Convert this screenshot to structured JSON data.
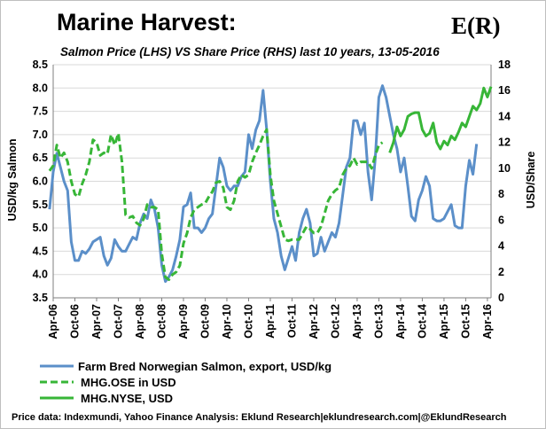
{
  "chart_data": {
    "type": "line",
    "title": "Marine Harvest:",
    "subtitle": "Salmon Price (LHS) VS Share Price (RHS) last 10 years, 13-05-2016",
    "logo": "E(R)",
    "ylabel_left": "USD/kg Salmon",
    "ylabel_right": "USD/Share",
    "ylim_left": [
      3.5,
      8.5
    ],
    "ylim_right": [
      0,
      18
    ],
    "yticks_left": [
      "3.5",
      "4.0",
      "4.5",
      "5.0",
      "5.5",
      "6.0",
      "6.5",
      "7.0",
      "7.5",
      "8.0",
      "8.5"
    ],
    "yticks_right": [
      "0",
      "2",
      "4",
      "6",
      "8",
      "10",
      "12",
      "14",
      "16",
      "18"
    ],
    "x_start": "2006-04",
    "x_end": "2016-05",
    "x_ticks": [
      "Apr-06",
      "Oct-06",
      "Apr-07",
      "Oct-07",
      "Apr-08",
      "Oct-08",
      "Apr-09",
      "Oct-09",
      "Apr-10",
      "Oct-10",
      "Apr-11",
      "Oct-11",
      "Apr-12",
      "Oct-12",
      "Apr-13",
      "Oct-13",
      "Apr-14",
      "Oct-14",
      "Apr-15",
      "Oct-15",
      "Apr-16"
    ],
    "grid": "horizontal",
    "legend_position": "bottom",
    "series": [
      {
        "name": "Farm Bred Norwegian Salmon, export, USD/kg",
        "axis": "left",
        "color": "#5b8fc9",
        "style": "solid",
        "points": [
          [
            "2006-03",
            5.4
          ],
          [
            "2006-04",
            6.2
          ],
          [
            "2006-05",
            6.6
          ],
          [
            "2006-06",
            6.3
          ],
          [
            "2006-07",
            6.0
          ],
          [
            "2006-08",
            5.8
          ],
          [
            "2006-09",
            4.7
          ],
          [
            "2006-10",
            4.3
          ],
          [
            "2006-11",
            4.3
          ],
          [
            "2006-12",
            4.5
          ],
          [
            "2007-01",
            4.45
          ],
          [
            "2007-02",
            4.55
          ],
          [
            "2007-03",
            4.7
          ],
          [
            "2007-04",
            4.75
          ],
          [
            "2007-05",
            4.8
          ],
          [
            "2007-06",
            4.4
          ],
          [
            "2007-07",
            4.2
          ],
          [
            "2007-08",
            4.35
          ],
          [
            "2007-09",
            4.75
          ],
          [
            "2007-10",
            4.6
          ],
          [
            "2007-11",
            4.5
          ],
          [
            "2007-12",
            4.5
          ],
          [
            "2008-01",
            4.65
          ],
          [
            "2008-02",
            4.8
          ],
          [
            "2008-03",
            4.75
          ],
          [
            "2008-04",
            5.1
          ],
          [
            "2008-05",
            5.3
          ],
          [
            "2008-06",
            5.2
          ],
          [
            "2008-07",
            5.6
          ],
          [
            "2008-08",
            5.4
          ],
          [
            "2008-09",
            5.0
          ],
          [
            "2008-10",
            4.2
          ],
          [
            "2008-11",
            3.85
          ],
          [
            "2008-12",
            3.95
          ],
          [
            "2009-01",
            4.1
          ],
          [
            "2009-02",
            4.4
          ],
          [
            "2009-03",
            4.75
          ],
          [
            "2009-04",
            5.45
          ],
          [
            "2009-05",
            5.5
          ],
          [
            "2009-06",
            5.75
          ],
          [
            "2009-07",
            5.0
          ],
          [
            "2009-08",
            5.0
          ],
          [
            "2009-09",
            4.9
          ],
          [
            "2009-10",
            5.0
          ],
          [
            "2009-11",
            5.2
          ],
          [
            "2009-12",
            5.3
          ],
          [
            "2010-01",
            5.9
          ],
          [
            "2010-02",
            6.5
          ],
          [
            "2010-03",
            6.3
          ],
          [
            "2010-04",
            5.9
          ],
          [
            "2010-05",
            5.8
          ],
          [
            "2010-06",
            5.9
          ],
          [
            "2010-07",
            5.9
          ],
          [
            "2010-08",
            6.1
          ],
          [
            "2010-09",
            6.2
          ],
          [
            "2010-10",
            7.0
          ],
          [
            "2010-11",
            6.7
          ],
          [
            "2010-12",
            7.1
          ],
          [
            "2011-01",
            7.3
          ],
          [
            "2011-02",
            7.95
          ],
          [
            "2011-03",
            7.1
          ],
          [
            "2011-04",
            6.0
          ],
          [
            "2011-05",
            5.2
          ],
          [
            "2011-06",
            4.9
          ],
          [
            "2011-07",
            4.4
          ],
          [
            "2011-08",
            4.1
          ],
          [
            "2011-09",
            4.35
          ],
          [
            "2011-10",
            4.6
          ],
          [
            "2011-11",
            4.3
          ],
          [
            "2011-12",
            4.9
          ],
          [
            "2012-01",
            5.2
          ],
          [
            "2012-02",
            5.4
          ],
          [
            "2012-03",
            5.1
          ],
          [
            "2012-04",
            4.4
          ],
          [
            "2012-05",
            4.45
          ],
          [
            "2012-06",
            4.8
          ],
          [
            "2012-07",
            4.5
          ],
          [
            "2012-08",
            4.7
          ],
          [
            "2012-09",
            4.9
          ],
          [
            "2012-10",
            4.8
          ],
          [
            "2012-11",
            5.1
          ],
          [
            "2012-12",
            5.7
          ],
          [
            "2013-01",
            6.3
          ],
          [
            "2013-02",
            6.5
          ],
          [
            "2013-03",
            7.3
          ],
          [
            "2013-04",
            7.3
          ],
          [
            "2013-05",
            7.0
          ],
          [
            "2013-06",
            7.25
          ],
          [
            "2013-07",
            6.2
          ],
          [
            "2013-08",
            5.6
          ],
          [
            "2013-09",
            6.5
          ],
          [
            "2013-10",
            7.8
          ],
          [
            "2013-11",
            8.05
          ],
          [
            "2013-12",
            7.8
          ],
          [
            "2014-01",
            7.4
          ],
          [
            "2014-02",
            7.0
          ],
          [
            "2014-03",
            6.7
          ],
          [
            "2014-04",
            6.2
          ],
          [
            "2014-05",
            6.5
          ],
          [
            "2014-06",
            5.9
          ],
          [
            "2014-07",
            5.25
          ],
          [
            "2014-08",
            5.15
          ],
          [
            "2014-09",
            5.6
          ],
          [
            "2014-10",
            5.8
          ],
          [
            "2014-11",
            6.1
          ],
          [
            "2014-12",
            5.9
          ],
          [
            "2015-01",
            5.2
          ],
          [
            "2015-02",
            5.15
          ],
          [
            "2015-03",
            5.15
          ],
          [
            "2015-04",
            5.2
          ],
          [
            "2015-05",
            5.35
          ],
          [
            "2015-06",
            5.5
          ],
          [
            "2015-07",
            5.05
          ],
          [
            "2015-08",
            5.0
          ],
          [
            "2015-09",
            5.0
          ],
          [
            "2015-10",
            5.9
          ],
          [
            "2015-11",
            6.45
          ],
          [
            "2015-12",
            6.15
          ],
          [
            "2016-01",
            6.8
          ]
        ]
      },
      {
        "name": "MHG.OSE in USD",
        "axis": "right",
        "color": "#37b637",
        "style": "dashed",
        "points": [
          [
            "2006-03",
            9.8
          ],
          [
            "2006-04",
            10.2
          ],
          [
            "2006-05",
            11.8
          ],
          [
            "2006-06",
            10.8
          ],
          [
            "2006-07",
            11.2
          ],
          [
            "2006-08",
            10.5
          ],
          [
            "2006-09",
            9.0
          ],
          [
            "2006-10",
            8.0
          ],
          [
            "2006-11",
            7.8
          ],
          [
            "2006-12",
            8.8
          ],
          [
            "2007-01",
            9.5
          ],
          [
            "2007-02",
            10.5
          ],
          [
            "2007-03",
            12.2
          ],
          [
            "2007-04",
            12.0
          ],
          [
            "2007-05",
            11.0
          ],
          [
            "2007-06",
            11.2
          ],
          [
            "2007-07",
            11.1
          ],
          [
            "2007-08",
            12.6
          ],
          [
            "2007-09",
            11.8
          ],
          [
            "2007-10",
            12.7
          ],
          [
            "2007-11",
            10.5
          ],
          [
            "2007-12",
            6.4
          ],
          [
            "2008-01",
            6.2
          ],
          [
            "2008-02",
            6.3
          ],
          [
            "2008-03",
            5.8
          ],
          [
            "2008-04",
            5.6
          ],
          [
            "2008-05",
            6.1
          ],
          [
            "2008-06",
            7.2
          ],
          [
            "2008-07",
            7.0
          ],
          [
            "2008-08",
            7.0
          ],
          [
            "2008-09",
            6.8
          ],
          [
            "2008-10",
            3.4
          ],
          [
            "2008-11",
            1.6
          ],
          [
            "2008-12",
            1.4
          ],
          [
            "2009-01",
            1.8
          ],
          [
            "2009-02",
            2.0
          ],
          [
            "2009-03",
            2.5
          ],
          [
            "2009-04",
            4.2
          ],
          [
            "2009-05",
            5.0
          ],
          [
            "2009-06",
            6.2
          ],
          [
            "2009-07",
            6.8
          ],
          [
            "2009-08",
            7.0
          ],
          [
            "2009-09",
            7.2
          ],
          [
            "2009-10",
            7.3
          ],
          [
            "2009-11",
            7.8
          ],
          [
            "2009-12",
            8.2
          ],
          [
            "2010-01",
            8.9
          ],
          [
            "2010-02",
            9.0
          ],
          [
            "2010-03",
            8.5
          ],
          [
            "2010-04",
            7.0
          ],
          [
            "2010-05",
            6.8
          ],
          [
            "2010-06",
            7.5
          ],
          [
            "2010-07",
            9.0
          ],
          [
            "2010-08",
            9.5
          ],
          [
            "2010-09",
            9.3
          ],
          [
            "2010-10",
            9.5
          ],
          [
            "2010-11",
            10.5
          ],
          [
            "2010-12",
            11.2
          ],
          [
            "2011-01",
            11.8
          ],
          [
            "2011-02",
            12.5
          ],
          [
            "2011-03",
            13.0
          ],
          [
            "2011-04",
            9.5
          ],
          [
            "2011-05",
            7.5
          ],
          [
            "2011-06",
            6.5
          ],
          [
            "2011-07",
            5.5
          ],
          [
            "2011-08",
            4.5
          ],
          [
            "2011-09",
            4.4
          ],
          [
            "2011-10",
            4.5
          ],
          [
            "2011-11",
            4.5
          ],
          [
            "2011-12",
            4.5
          ],
          [
            "2012-01",
            5.0
          ],
          [
            "2012-02",
            5.5
          ],
          [
            "2012-03",
            5.3
          ],
          [
            "2012-04",
            5.0
          ],
          [
            "2012-05",
            5.0
          ],
          [
            "2012-06",
            5.5
          ],
          [
            "2012-07",
            6.5
          ],
          [
            "2012-08",
            7.5
          ],
          [
            "2012-09",
            8.0
          ],
          [
            "2012-10",
            8.3
          ],
          [
            "2012-11",
            8.5
          ],
          [
            "2012-12",
            9.5
          ],
          [
            "2013-01",
            10.0
          ],
          [
            "2013-02",
            10.2
          ],
          [
            "2013-03",
            10.8
          ],
          [
            "2013-04",
            10.3
          ],
          [
            "2013-05",
            10.5
          ],
          [
            "2013-06",
            10.5
          ],
          [
            "2013-07",
            10.5
          ],
          [
            "2013-08",
            10.0
          ],
          [
            "2013-09",
            11.0
          ],
          [
            "2013-10",
            11.8
          ],
          [
            "2013-11",
            12.0
          ]
        ]
      },
      {
        "name": "MHG.NYSE, USD",
        "axis": "right",
        "color": "#37b637",
        "style": "solid",
        "points": [
          [
            "2014-01",
            11.2
          ],
          [
            "2014-02",
            12.0
          ],
          [
            "2014-03",
            13.2
          ],
          [
            "2014-04",
            12.5
          ],
          [
            "2014-05",
            13.0
          ],
          [
            "2014-06",
            14.0
          ],
          [
            "2014-07",
            14.2
          ],
          [
            "2014-08",
            14.3
          ],
          [
            "2014-09",
            14.3
          ],
          [
            "2014-10",
            13.0
          ],
          [
            "2014-11",
            12.5
          ],
          [
            "2014-12",
            12.7
          ],
          [
            "2015-01",
            13.5
          ],
          [
            "2015-02",
            12.0
          ],
          [
            "2015-03",
            11.5
          ],
          [
            "2015-04",
            12.1
          ],
          [
            "2015-05",
            11.8
          ],
          [
            "2015-06",
            12.5
          ],
          [
            "2015-07",
            12.2
          ],
          [
            "2015-08",
            12.8
          ],
          [
            "2015-09",
            13.5
          ],
          [
            "2015-10",
            13.2
          ],
          [
            "2015-11",
            14.0
          ],
          [
            "2015-12",
            14.8
          ],
          [
            "2016-01",
            14.5
          ],
          [
            "2016-02",
            15.0
          ],
          [
            "2016-03",
            16.2
          ],
          [
            "2016-04",
            15.5
          ],
          [
            "2016-05",
            16.3
          ]
        ]
      }
    ],
    "footer": "Price data: Indexmundi, Yahoo Finance   Analysis: Eklund Research|eklundresearch.com|@EklundResearch"
  }
}
